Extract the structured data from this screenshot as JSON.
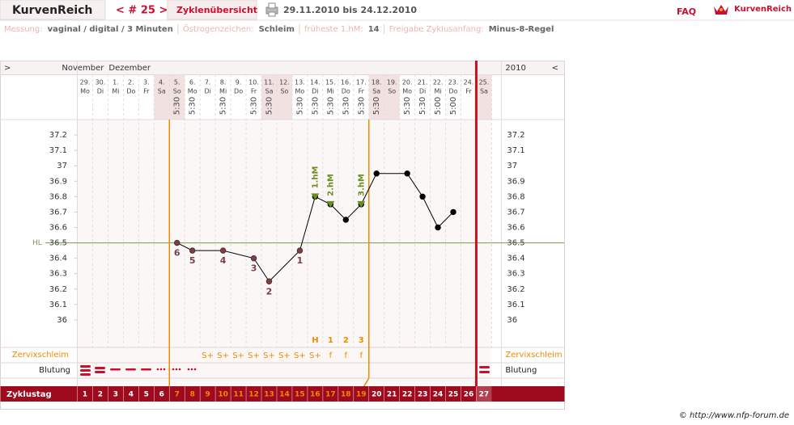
{
  "header": {
    "title": "KurvenReich",
    "cycle_nav": "< # 25 >",
    "overview": "Zyklenübersicht",
    "date_range": "29.11.2010 bis 24.12.2010",
    "faq": "FAQ",
    "logo": "KurvenReich"
  },
  "info": [
    {
      "label": "Messung:",
      "value": "vaginal / digital / 3 Minuten"
    },
    {
      "label": "Östrogenzeichen:",
      "value": "Schleim"
    },
    {
      "label": "früheste 1.hM:",
      "value": "14"
    },
    {
      "label": "Freigabe Zyklusanfang:",
      "value": "Minus-8-Regel"
    }
  ],
  "chart_data": {
    "type": "line",
    "nav_left": ">",
    "nav_right": "<",
    "year": "2010",
    "months": [
      "November",
      "Dezember"
    ],
    "dates": [
      "29.",
      "30.",
      "1.",
      "2.",
      "3.",
      "4.",
      "5.",
      "6.",
      "7.",
      "8.",
      "9.",
      "10.",
      "11.",
      "12.",
      "13.",
      "14.",
      "15.",
      "16.",
      "17.",
      "18.",
      "19.",
      "20.",
      "21.",
      "22.",
      "23.",
      "24.",
      "25."
    ],
    "weekdays": [
      "Mo",
      "Di",
      "Mi",
      "Do",
      "Fr",
      "Sa",
      "So",
      "Mo",
      "Di",
      "Mi",
      "Do",
      "Fr",
      "Sa",
      "So",
      "Mo",
      "Di",
      "Mi",
      "Do",
      "Fr",
      "Sa",
      "So",
      "Mo",
      "Di",
      "Mi",
      "Do",
      "Fr",
      "Sa"
    ],
    "weekend": [
      false,
      false,
      false,
      false,
      false,
      true,
      true,
      false,
      false,
      false,
      false,
      false,
      true,
      true,
      false,
      false,
      false,
      false,
      false,
      true,
      true,
      false,
      false,
      false,
      false,
      false,
      true
    ],
    "cycle_days": [
      1,
      2,
      3,
      4,
      5,
      6,
      7,
      8,
      9,
      10,
      11,
      12,
      13,
      14,
      15,
      16,
      17,
      18,
      19,
      20,
      21,
      22,
      23,
      24,
      25,
      26,
      27
    ],
    "cycle_day_label": "Zyklustag",
    "ylim": [
      35.9,
      37.3
    ],
    "yticks": [
      36,
      36.1,
      36.2,
      36.3,
      36.4,
      36.5,
      36.6,
      36.7,
      36.8,
      36.9,
      37,
      37.1,
      37.2
    ],
    "hl": 36.5,
    "hl_label": "HL",
    "hl_color": "#7a9a50",
    "measurements": {
      "x": [
        7,
        8,
        10,
        12,
        13,
        15,
        16,
        17,
        18,
        19,
        20,
        22,
        23,
        24,
        25
      ],
      "values": [
        36.5,
        36.45,
        36.45,
        36.4,
        36.25,
        36.45,
        36.8,
        36.75,
        36.65,
        36.75,
        36.95,
        36.95,
        36.8,
        36.6,
        36.7
      ],
      "times": [
        "5:30",
        "5:30",
        "5:30",
        "5:30",
        "5:30",
        "5:30",
        "5:30",
        "5:30",
        "5:30",
        "5:30",
        "5:30",
        "5:30",
        "5:30",
        "5:00",
        "5:00"
      ],
      "color": "#000000",
      "low_color": "#7b3f46"
    },
    "low_phase": {
      "x": [
        7,
        8,
        10,
        12,
        13,
        15
      ],
      "labels": [
        6,
        5,
        4,
        3,
        2,
        1
      ]
    },
    "high_marks": {
      "x": [
        16,
        17,
        19
      ],
      "labels": [
        "1.hM",
        "2.hM",
        "3.hM"
      ],
      "color": "#6b8e23"
    },
    "cervix_label": "Zervixschleim",
    "cervix": {
      "x": [
        9,
        10,
        11,
        12,
        13,
        14,
        15,
        16,
        17,
        18,
        19
      ],
      "values": [
        "S+",
        "S+",
        "S+",
        "S+",
        "S+",
        "S+",
        "S+",
        "S+",
        "f",
        "f",
        "f"
      ]
    },
    "peak": {
      "x": [
        16,
        17,
        18,
        19
      ],
      "labels": [
        "H",
        "1",
        "2",
        "3"
      ]
    },
    "bleeding_label": "Blutung",
    "accent_color": "#f08a00"
  },
  "footer": "© http://www.nfp-forum.de"
}
